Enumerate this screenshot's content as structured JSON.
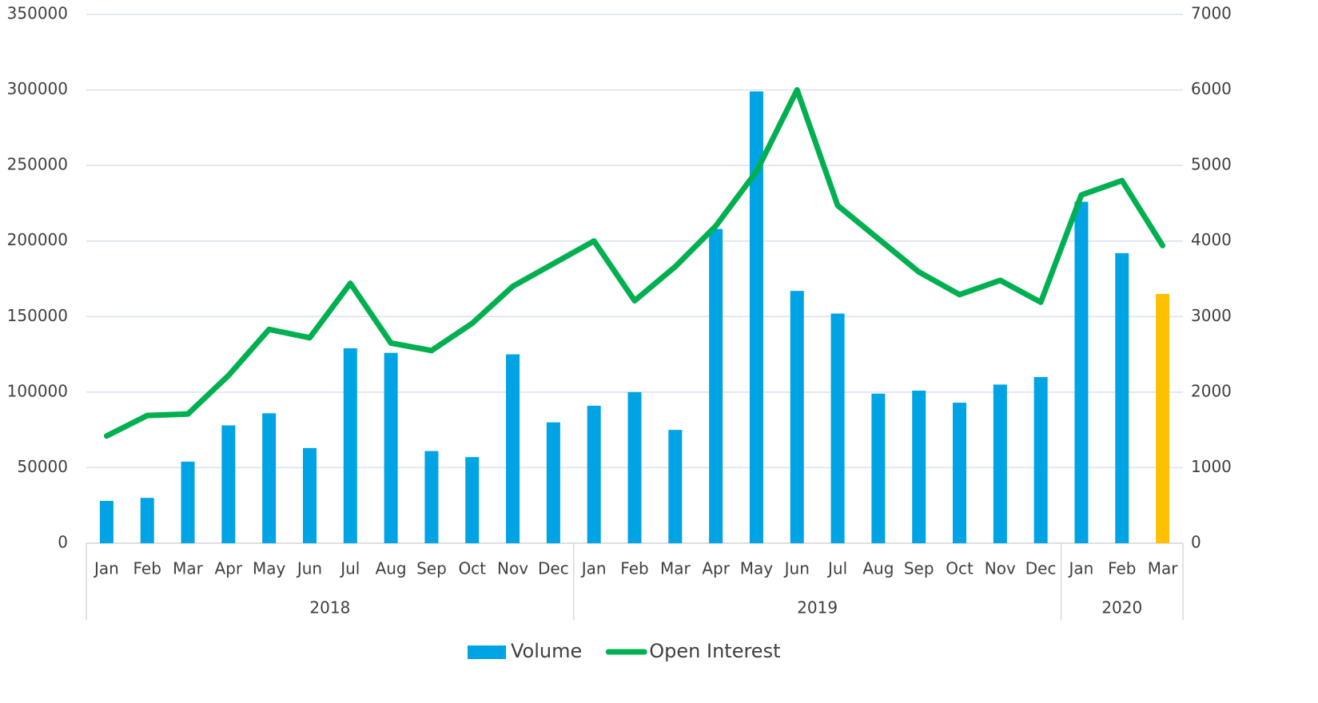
{
  "chart_data": {
    "type": "bar_line",
    "groups": [
      {
        "label": "2018",
        "categories": [
          "Jan",
          "Feb",
          "Mar",
          "Apr",
          "May",
          "Jun",
          "Jul",
          "Aug",
          "Sep",
          "Oct",
          "Nov",
          "Dec"
        ]
      },
      {
        "label": "2019",
        "categories": [
          "Jan",
          "Feb",
          "Mar",
          "Apr",
          "May",
          "Jun",
          "Jul",
          "Aug",
          "Sep",
          "Oct",
          "Nov",
          "Dec"
        ]
      },
      {
        "label": "2020",
        "categories": [
          "Jan",
          "Feb",
          "Mar"
        ]
      }
    ],
    "series": [
      {
        "name": "Volume",
        "type": "bar",
        "color": "#00a3e4",
        "colors": [
          "#00a3e4",
          "#00a3e4",
          "#00a3e4",
          "#00a3e4",
          "#00a3e4",
          "#00a3e4",
          "#00a3e4",
          "#00a3e4",
          "#00a3e4",
          "#00a3e4",
          "#00a3e4",
          "#00a3e4",
          "#00a3e4",
          "#00a3e4",
          "#00a3e4",
          "#00a3e4",
          "#00a3e4",
          "#00a3e4",
          "#00a3e4",
          "#00a3e4",
          "#00a3e4",
          "#00a3e4",
          "#00a3e4",
          "#00a3e4",
          "#00a3e4",
          "#00a3e4",
          "#ffc000"
        ],
        "values": [
          28000,
          30000,
          54000,
          78000,
          86000,
          63000,
          129000,
          126000,
          61000,
          57000,
          125000,
          80000,
          91000,
          100000,
          75000,
          208000,
          299000,
          167000,
          152000,
          99000,
          101000,
          93000,
          105000,
          110000,
          226000,
          192000,
          165000
        ]
      },
      {
        "name": "Open Interest",
        "type": "line",
        "axis": "y2",
        "color": "#00b050",
        "values": [
          1420,
          1690,
          1710,
          2220,
          2830,
          2720,
          3440,
          2650,
          2550,
          2910,
          3400,
          3700,
          4000,
          3210,
          3660,
          4200,
          4920,
          6000,
          4470,
          4030,
          3590,
          3290,
          3480,
          3190,
          4610,
          4800,
          3940
        ]
      }
    ],
    "ylim": [
      0,
      350000
    ],
    "yticks": [
      0,
      50000,
      100000,
      150000,
      200000,
      250000,
      300000,
      350000
    ],
    "y2lim": [
      0,
      7000
    ],
    "y2ticks": [
      0,
      1000,
      2000,
      3000,
      4000,
      5000,
      6000,
      7000
    ],
    "grid": true,
    "legend": "bottom"
  }
}
